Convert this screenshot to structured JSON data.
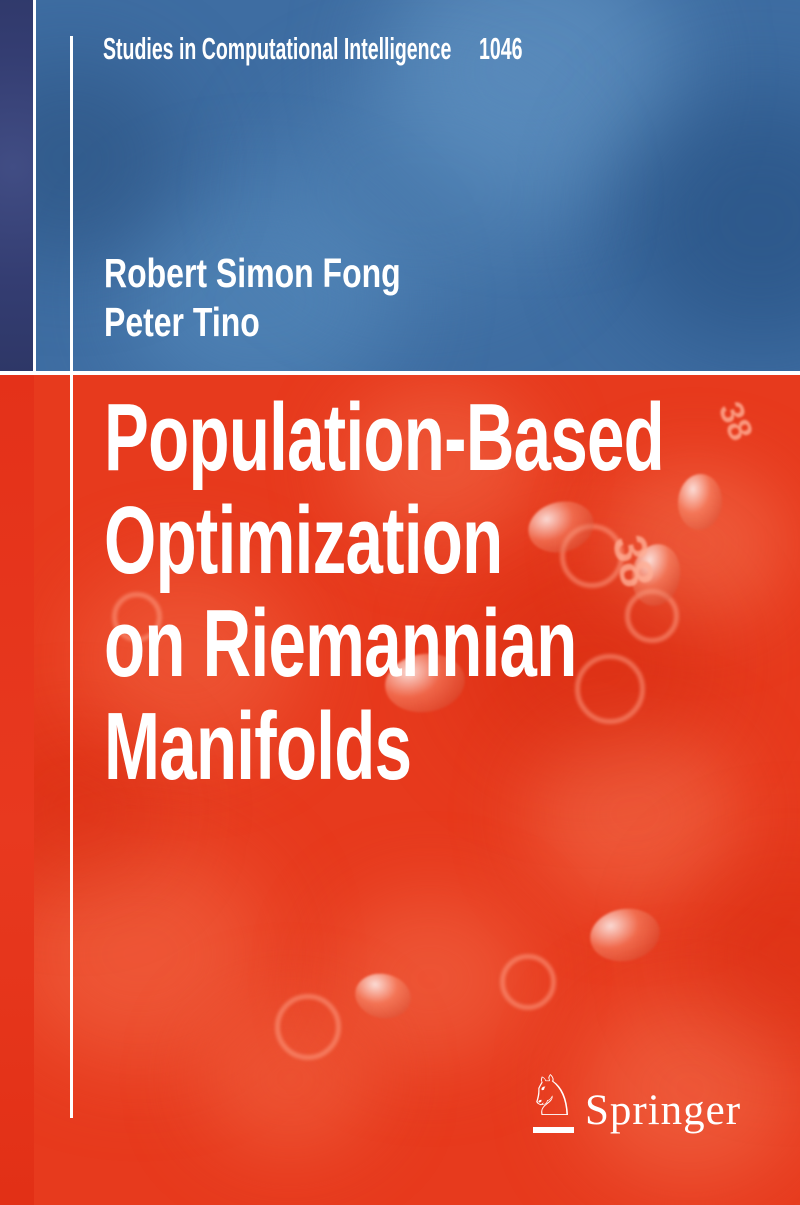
{
  "series": {
    "name": "Studies in Computational Intelligence",
    "number": "1046"
  },
  "authors": [
    "Robert Simon Fong",
    "Peter Tino"
  ],
  "title": {
    "full": "Population-Based Optimization on Riemannian Manifolds",
    "lines": [
      "Population-Based",
      "Optimization",
      "on Riemannian",
      "Manifolds"
    ]
  },
  "publisher": {
    "name": "Springer",
    "horse_glyph": "♘"
  },
  "colors": {
    "blue_panel": "#3e6da2",
    "navy_spine_strip": "#343d72",
    "red_panel": "#e73a1d",
    "red_spine_strip": "#e43119",
    "rule_lines": "#ffffff",
    "text": "#ffffff"
  },
  "background": {
    "texture_numbers": [
      "38",
      "38"
    ]
  }
}
